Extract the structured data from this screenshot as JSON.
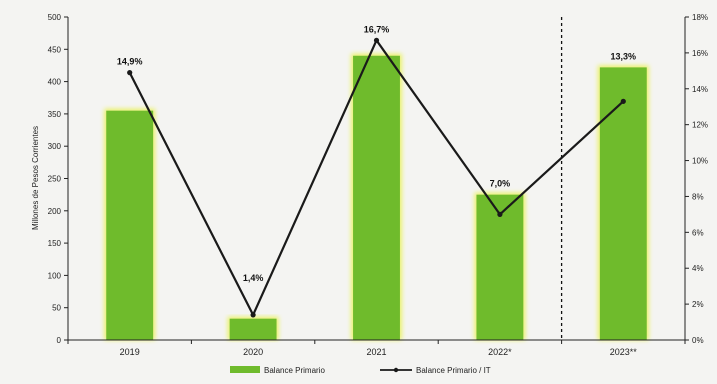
{
  "chart_data": {
    "type": "bar",
    "title": "",
    "xlabel": "",
    "ylabel": "Millones de Pesos Corrientes",
    "categories": [
      "2019",
      "2020",
      "2021",
      "2022*",
      "2023**"
    ],
    "ylim": [
      0,
      500
    ],
    "y_ticks": [
      "0",
      "50",
      "100",
      "150",
      "200",
      "250",
      "300",
      "350",
      "400",
      "450",
      "500"
    ],
    "y2lim": [
      0,
      18
    ],
    "y2_ticks": [
      "0%",
      "2%",
      "4%",
      "6%",
      "8%",
      "10%",
      "12%",
      "14%",
      "16%",
      "18%"
    ],
    "grid": false,
    "legend_position": "bottom",
    "separator_after_category": "2022*",
    "colors": {
      "bar": "#6fbb2c",
      "bar_glow": "#e9f25a",
      "line": "#1a1a1a",
      "axis": "#222222"
    },
    "series": [
      {
        "name": "Balance Primario",
        "type": "bar",
        "axis": "left",
        "values": [
          355,
          33,
          440,
          225,
          422
        ]
      },
      {
        "name": "Balance Primario / IT",
        "type": "line",
        "axis": "right",
        "values": [
          14.9,
          1.4,
          16.7,
          7.0,
          13.3
        ],
        "labels": [
          "14,9%",
          "1,4%",
          "16,7%",
          "7,0%",
          "13,3%"
        ]
      }
    ]
  }
}
